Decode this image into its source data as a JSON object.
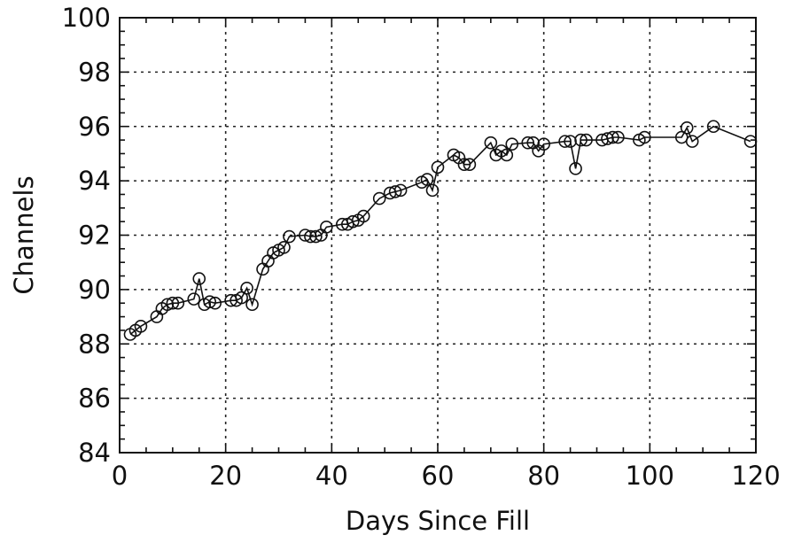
{
  "chart_data": {
    "type": "scatter",
    "title": "",
    "xlabel": "Days Since Fill",
    "ylabel": "Channels",
    "xlim": [
      0,
      120
    ],
    "ylim": [
      84,
      100
    ],
    "xticks": [
      0,
      20,
      40,
      60,
      80,
      100,
      120
    ],
    "yticks": [
      84,
      86,
      88,
      90,
      92,
      94,
      96,
      98,
      100
    ],
    "grid": true,
    "marker": "open-circle",
    "connected": true,
    "series": [
      {
        "x": [
          2,
          3,
          4,
          7,
          8,
          9,
          10,
          11,
          14,
          15,
          16,
          17,
          18,
          21,
          22,
          23,
          24,
          25,
          27,
          28,
          29,
          30,
          31,
          32,
          35,
          36,
          37,
          38,
          39,
          42,
          43,
          44,
          45,
          46,
          49,
          51,
          52,
          53,
          57,
          58,
          59,
          60,
          63,
          64,
          65,
          66,
          70,
          71,
          72,
          73,
          74,
          77,
          78,
          79,
          80,
          84,
          85,
          86,
          87,
          88,
          91,
          92,
          93,
          94,
          98,
          99,
          106,
          107,
          108,
          112,
          119
        ],
        "y": [
          88.35,
          88.5,
          88.65,
          89.0,
          89.3,
          89.45,
          89.5,
          89.5,
          89.65,
          90.4,
          89.45,
          89.55,
          89.5,
          89.6,
          89.6,
          89.7,
          90.05,
          89.45,
          90.75,
          91.05,
          91.35,
          91.45,
          91.55,
          91.95,
          92.0,
          91.95,
          91.95,
          92.0,
          92.3,
          92.4,
          92.4,
          92.5,
          92.55,
          92.7,
          93.35,
          93.55,
          93.6,
          93.65,
          93.95,
          94.05,
          93.65,
          94.5,
          94.95,
          94.85,
          94.6,
          94.6,
          95.4,
          94.95,
          95.1,
          94.95,
          95.35,
          95.4,
          95.4,
          95.1,
          95.35,
          95.45,
          95.45,
          94.45,
          95.5,
          95.5,
          95.5,
          95.55,
          95.6,
          95.6,
          95.5,
          95.6,
          95.6,
          95.95,
          95.45,
          96.0,
          95.45
        ]
      }
    ]
  }
}
